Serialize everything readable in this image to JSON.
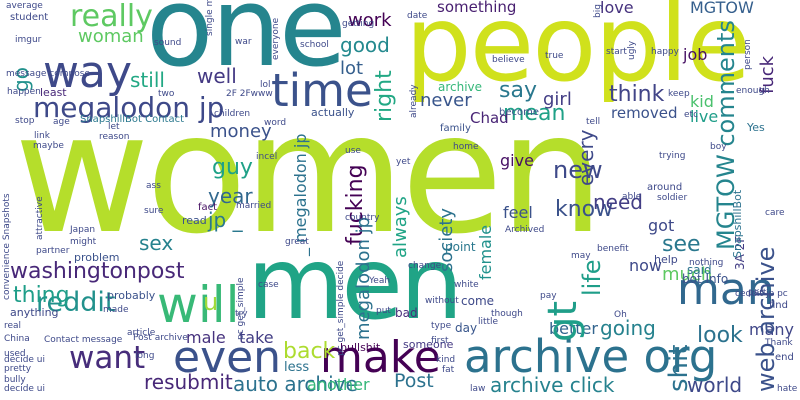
{
  "words": [
    {
      "text": "women",
      "color": "#b5de2b"
    },
    {
      "text": "people",
      "color": "#d0e11c"
    },
    {
      "text": "one",
      "color": "#25858e"
    },
    {
      "text": "men",
      "color": "#20a486"
    },
    {
      "text": "time",
      "color": "#3b528b"
    },
    {
      "text": "archive org",
      "color": "#2c728e"
    },
    {
      "text": "make",
      "color": "#440154"
    },
    {
      "text": "even",
      "color": "#3b528b"
    },
    {
      "text": "want",
      "color": "#472d7b"
    },
    {
      "text": "will",
      "color": "#38b977"
    },
    {
      "text": "man",
      "color": "#31688e"
    },
    {
      "text": "way",
      "color": "#3e4989"
    },
    {
      "text": "really",
      "color": "#5ec962"
    },
    {
      "text": "woman",
      "color": "#5ec962"
    },
    {
      "text": "megalodon jp",
      "color": "#3e4989"
    },
    {
      "text": "washingtonpost",
      "color": "#482878"
    },
    {
      "text": "reddit",
      "color": "#21918c"
    },
    {
      "text": "thing",
      "color": "#1f9e89"
    },
    {
      "text": "resubmit",
      "color": "#482878"
    },
    {
      "text": "auto archive",
      "color": "#2c728e"
    },
    {
      "text": "archive click",
      "color": "#26828e"
    },
    {
      "text": "Post",
      "color": "#2c728e"
    },
    {
      "text": "another",
      "color": "#35b779"
    },
    {
      "text": "world",
      "color": "#3e4989"
    },
    {
      "text": "back",
      "color": "#addc30"
    },
    {
      "text": "take",
      "color": "#433e85"
    },
    {
      "text": "male",
      "color": "#46327e"
    },
    {
      "text": "sex",
      "color": "#26828e"
    },
    {
      "text": "year",
      "color": "#31688e"
    },
    {
      "text": "guy",
      "color": "#1fa187"
    },
    {
      "text": "jp _",
      "color": "#2a788e"
    },
    {
      "text": "u",
      "color": "#9fda3a"
    },
    {
      "text": "money",
      "color": "#3b528b"
    },
    {
      "text": "still",
      "color": "#22a884"
    },
    {
      "text": "well",
      "color": "#443983"
    },
    {
      "text": "work",
      "color": "#440154"
    },
    {
      "text": "good",
      "color": "#23898e"
    },
    {
      "text": "lot",
      "color": "#355f8d"
    },
    {
      "text": "mean",
      "color": "#1fa187"
    },
    {
      "text": "something",
      "color": "#481f70"
    },
    {
      "text": "say",
      "color": "#2a788e"
    },
    {
      "text": "never",
      "color": "#39568c"
    },
    {
      "text": "think",
      "color": "#414487"
    },
    {
      "text": "girl",
      "color": "#433e85"
    },
    {
      "text": "Chad",
      "color": "#482475"
    },
    {
      "text": "removed",
      "color": "#3b528b"
    },
    {
      "text": "new",
      "color": "#3e4989"
    },
    {
      "text": "know",
      "color": "#3b528b"
    },
    {
      "text": "need",
      "color": "#433e85"
    },
    {
      "text": "give",
      "color": "#471164"
    },
    {
      "text": "feel",
      "color": "#3b528b"
    },
    {
      "text": "see",
      "color": "#2a788e"
    },
    {
      "text": "got",
      "color": "#3e4989"
    },
    {
      "text": "much",
      "color": "#5ec962"
    },
    {
      "text": "going",
      "color": "#26828e"
    },
    {
      "text": "look",
      "color": "#2c728e"
    },
    {
      "text": "many",
      "color": "#404688"
    },
    {
      "text": "better",
      "color": "#32648e"
    },
    {
      "text": "love",
      "color": "#46327e"
    },
    {
      "text": "live",
      "color": "#1f9e89"
    },
    {
      "text": "kid",
      "color": "#4ac16d"
    },
    {
      "text": "job",
      "color": "#471164"
    },
    {
      "text": "MGTOW",
      "color": "#355f8d"
    },
    {
      "text": "now",
      "color": "#3e4989"
    },
    {
      "text": "gt",
      "color": "#1f9e89"
    },
    {
      "text": "right",
      "color": "#22a884"
    },
    {
      "text": "fucking",
      "color": "#440154"
    },
    {
      "text": "always",
      "color": "#20a486"
    },
    {
      "text": "life",
      "color": "#1f9e89"
    },
    {
      "text": "every",
      "color": "#3e4989"
    },
    {
      "text": "society",
      "color": "#2c728e"
    },
    {
      "text": "female",
      "color": "#21918c"
    },
    {
      "text": "shit",
      "color": "#2c728e"
    },
    {
      "text": "fuck",
      "color": "#482878"
    },
    {
      "text": "MGTOW comments",
      "color": "#25858e"
    },
    {
      "text": "web archive",
      "color": "#3b528b"
    },
    {
      "text": "go",
      "color": "#21918c"
    },
    {
      "text": "megalodon jp",
      "color": "#2c728e"
    },
    {
      "text": "_ megalodon jp",
      "color": "#2c728e"
    },
    {
      "text": "3A 2F",
      "color": "#433e85"
    },
    {
      "text": "SnapshillBot Contact",
      "color": "#2a788e"
    },
    {
      "text": "SnapshillBot",
      "color": "#2c728e"
    },
    {
      "text": "bot Info",
      "color": "#3b528b"
    },
    {
      "text": "archive",
      "color": "#35b779"
    },
    {
      "text": "point",
      "color": "#2a788e"
    },
    {
      "text": "said",
      "color": "#2c728e"
    },
    {
      "text": "come",
      "color": "#3e4989"
    },
    {
      "text": "day",
      "color": "#39568c"
    },
    {
      "text": "bad",
      "color": "#472d7b"
    },
    {
      "text": "less",
      "color": "#2c728e"
    },
    {
      "text": "problem",
      "color": "#3b528b"
    },
    {
      "text": "probably",
      "color": "#3b528b"
    },
    {
      "text": "anything",
      "color": "#3e4989"
    },
    {
      "text": "read",
      "color": "#3b528b"
    },
    {
      "text": "fact",
      "color": "#471164"
    },
    {
      "text": "Yes",
      "color": "#2c728e"
    },
    {
      "text": "bullshit",
      "color": "#440154"
    },
    {
      "text": "someone",
      "color": "#443983"
    },
    {
      "text": "actually",
      "color": "#3b528b"
    },
    {
      "text": "become",
      "color": "#3b528b"
    },
    {
      "text": "family",
      "color": "#3b528b"
    },
    {
      "text": "least",
      "color": "#482878"
    },
    {
      "text": "student",
      "color": "#3e4989"
    },
    {
      "text": "average",
      "color": "#3e4989"
    },
    {
      "text": "imgur",
      "color": "#3e4989"
    },
    {
      "text": "decide ui",
      "color": "#3e4989"
    },
    {
      "text": "message compose",
      "color": "#3e4989"
    },
    {
      "text": "happen",
      "color": "#3e4989"
    },
    {
      "text": "China",
      "color": "#3e4989"
    },
    {
      "text": "used",
      "color": "#3e4989"
    },
    {
      "text": "pretty",
      "color": "#3e4989"
    },
    {
      "text": "bully",
      "color": "#3e4989"
    },
    {
      "text": "real",
      "color": "#3e4989"
    },
    {
      "text": "Japan",
      "color": "#3e4989"
    },
    {
      "text": "might",
      "color": "#3e4989"
    },
    {
      "text": "partner",
      "color": "#3e4989"
    },
    {
      "text": "link",
      "color": "#3e4989"
    },
    {
      "text": "maybe",
      "color": "#3e4989"
    },
    {
      "text": "incel",
      "color": "#3e4989"
    },
    {
      "text": "home",
      "color": "#3e4989"
    },
    {
      "text": "yet",
      "color": "#3e4989"
    },
    {
      "text": "trying",
      "color": "#3e4989"
    },
    {
      "text": "around",
      "color": "#3e4989"
    },
    {
      "text": "soldier",
      "color": "#3e4989"
    },
    {
      "text": "able",
      "color": "#3e4989"
    },
    {
      "text": "care",
      "color": "#3e4989"
    },
    {
      "text": "benefit",
      "color": "#3e4989"
    },
    {
      "text": "help",
      "color": "#3e4989"
    },
    {
      "text": "nothing",
      "color": "#3e4989"
    },
    {
      "text": "Archived",
      "color": "#3e4989"
    },
    {
      "text": "great",
      "color": "#3e4989"
    },
    {
      "text": "country",
      "color": "#3e4989"
    },
    {
      "text": "first",
      "color": "#3e4989"
    },
    {
      "text": "white",
      "color": "#3e4989"
    },
    {
      "text": "though",
      "color": "#3e4989"
    },
    {
      "text": "case",
      "color": "#3e4989"
    },
    {
      "text": "type",
      "color": "#3e4989"
    },
    {
      "text": "kind",
      "color": "#3e4989"
    },
    {
      "text": "long",
      "color": "#3e4989"
    },
    {
      "text": "article",
      "color": "#3e4989"
    },
    {
      "text": "Thank",
      "color": "#3e4989"
    },
    {
      "text": "end",
      "color": "#3e4989"
    },
    {
      "text": "hate",
      "color": "#3e4989"
    },
    {
      "text": "find",
      "color": "#3e4989"
    },
    {
      "text": "part",
      "color": "#3e4989"
    },
    {
      "text": "Oh",
      "color": "#3e4989"
    },
    {
      "text": "tell",
      "color": "#3e4989"
    },
    {
      "text": "keep",
      "color": "#3e4989"
    },
    {
      "text": "etc",
      "color": "#3e4989"
    },
    {
      "text": "enough",
      "color": "#3e4989"
    },
    {
      "text": "start",
      "color": "#3e4989"
    },
    {
      "text": "happy",
      "color": "#3e4989"
    },
    {
      "text": "believe",
      "color": "#3e4989"
    },
    {
      "text": "true",
      "color": "#3e4989"
    },
    {
      "text": "date",
      "color": "#3e4989"
    },
    {
      "text": "getting",
      "color": "#3e4989"
    },
    {
      "text": "school",
      "color": "#3e4989"
    },
    {
      "text": "lol",
      "color": "#3e4989"
    },
    {
      "text": "two",
      "color": "#3e4989"
    },
    {
      "text": "2F 2Fwww",
      "color": "#3e4989"
    },
    {
      "text": "children",
      "color": "#3e4989"
    },
    {
      "text": "word",
      "color": "#3e4989"
    },
    {
      "text": "sound",
      "color": "#3e4989"
    },
    {
      "text": "war",
      "color": "#3e4989"
    },
    {
      "text": "Contact message",
      "color": "#3e4989"
    },
    {
      "text": "Post archive",
      "color": "#3e4989"
    },
    {
      "text": "reason",
      "color": "#3e4989"
    },
    {
      "text": "let",
      "color": "#3e4989"
    },
    {
      "text": "age",
      "color": "#3e4989"
    },
    {
      "text": "stop",
      "color": "#3e4989"
    },
    {
      "text": "sure",
      "color": "#3e4989"
    },
    {
      "text": "ass",
      "color": "#3e4989"
    },
    {
      "text": "married",
      "color": "#3e4989"
    },
    {
      "text": "little",
      "color": "#3e4989"
    },
    {
      "text": "without",
      "color": "#3e4989"
    },
    {
      "text": "change",
      "color": "#3e4989"
    },
    {
      "text": "pay",
      "color": "#3e4989"
    },
    {
      "text": "law",
      "color": "#3e4989"
    },
    {
      "text": "put",
      "color": "#3e4989"
    },
    {
      "text": "try",
      "color": "#3e4989"
    },
    {
      "text": "made",
      "color": "#3e4989"
    },
    {
      "text": "Yeah",
      "color": "#3e4989"
    },
    {
      "text": "may",
      "color": "#3e4989"
    },
    {
      "text": "single mother",
      "color": "#3e4989"
    },
    {
      "text": "everyone",
      "color": "#3e4989"
    },
    {
      "text": "ugly",
      "color": "#3e4989"
    },
    {
      "text": "big",
      "color": "#3e4989"
    },
    {
      "text": "already",
      "color": "#3e4989"
    },
    {
      "text": "person",
      "color": "#3e4989"
    },
    {
      "text": "ceddit",
      "color": "#3e4989"
    },
    {
      "text": "pc get_simple",
      "color": "#3e4989"
    },
    {
      "text": "pc get_simple decide",
      "color": "#3e4989"
    },
    {
      "text": "convenience Snapshots",
      "color": "#3e4989"
    },
    {
      "text": "attractive",
      "color": "#3e4989"
    },
    {
      "text": "use",
      "color": "#3e4989"
    },
    {
      "text": "boy",
      "color": "#3e4989"
    },
    {
      "text": "jp pc",
      "color": "#3e4989"
    },
    {
      "text": "fat",
      "color": "#3e4989"
    },
    {
      "text": "decide ui",
      "color": "#3e4989"
    }
  ]
}
